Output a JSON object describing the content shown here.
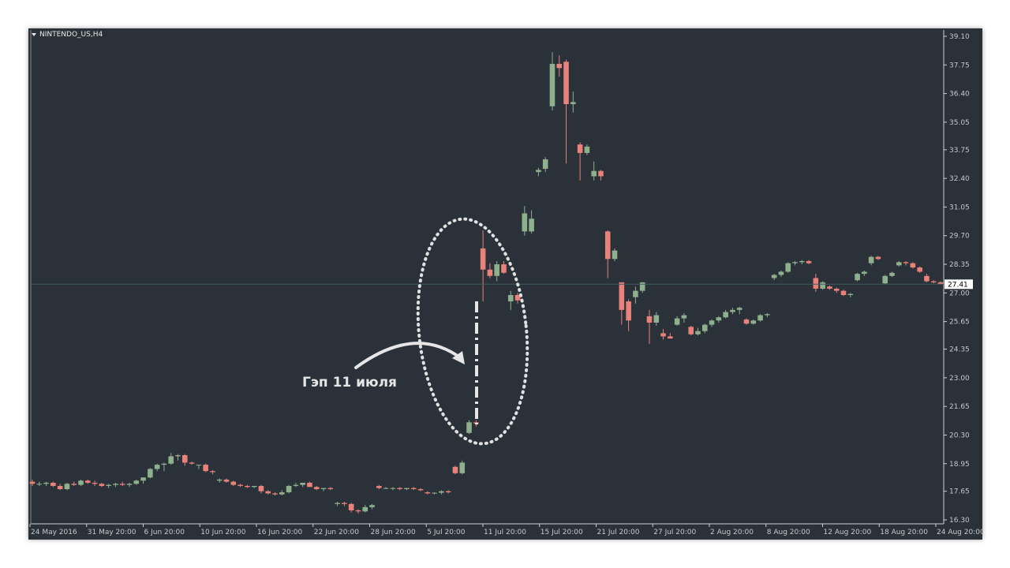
{
  "chart_data": {
    "type": "candlestick",
    "symbol": "NINTENDO_US,H4",
    "ylim": [
      16.3,
      39.1
    ],
    "y_ticks": [
      "39.10",
      "37.75",
      "36.40",
      "35.05",
      "33.75",
      "32.40",
      "31.05",
      "29.70",
      "28.35",
      "27.00",
      "25.65",
      "24.35",
      "23.00",
      "21.65",
      "20.30",
      "18.95",
      "17.65",
      "16.30"
    ],
    "x_ticks": [
      "24 May 2016",
      "31 May 20:00",
      "6 Jun 20:00",
      "10 Jun 20:00",
      "16 Jun 20:00",
      "22 Jun 20:00",
      "28 Jun 20:00",
      "5 Jul 20:00",
      "11 Jul 20:00",
      "15 Jul 20:00",
      "21 Jul 20:00",
      "27 Jul 20:00",
      "2 Aug 20:00",
      "8 Aug 20:00",
      "12 Aug 20:00",
      "18 Aug 20:00",
      "24 Aug 20:00"
    ],
    "current_price": "27.41",
    "colors": {
      "background": "#2a3139",
      "up": "#8fb08c",
      "down": "#e8827a",
      "text": "#e8e8e8",
      "axis": "#c8c8c8",
      "price_line": "#3e5a62"
    },
    "candles": [
      [
        18.1,
        18.2,
        17.9,
        18.0
      ],
      [
        18.0,
        18.1,
        17.9,
        18.0
      ],
      [
        18.0,
        18.1,
        17.9,
        18.05
      ],
      [
        18.05,
        18.1,
        17.85,
        17.9
      ],
      [
        17.9,
        18.0,
        17.7,
        17.75
      ],
      [
        17.75,
        18.05,
        17.7,
        18.0
      ],
      [
        18.0,
        18.1,
        17.9,
        17.95
      ],
      [
        17.95,
        18.2,
        17.9,
        18.15
      ],
      [
        18.15,
        18.2,
        18.0,
        18.05
      ],
      [
        18.05,
        18.15,
        17.9,
        18.0
      ],
      [
        18.0,
        18.05,
        17.85,
        17.9
      ],
      [
        17.9,
        18.0,
        17.8,
        17.95
      ],
      [
        17.95,
        18.05,
        17.85,
        18.0
      ],
      [
        18.0,
        18.1,
        17.9,
        17.95
      ],
      [
        17.95,
        18.05,
        17.85,
        18.0
      ],
      [
        18.0,
        18.2,
        17.95,
        18.15
      ],
      [
        18.15,
        18.3,
        18.0,
        18.3
      ],
      [
        18.3,
        18.75,
        18.25,
        18.7
      ],
      [
        18.7,
        18.95,
        18.6,
        18.9
      ],
      [
        18.9,
        19.0,
        18.6,
        18.95
      ],
      [
        18.95,
        19.45,
        18.9,
        19.3
      ],
      [
        19.3,
        19.4,
        19.1,
        19.35
      ],
      [
        19.35,
        19.4,
        18.85,
        19.0
      ],
      [
        19.0,
        19.05,
        18.9,
        18.95
      ],
      [
        18.9,
        18.9,
        18.7,
        18.9
      ],
      [
        18.9,
        18.95,
        18.55,
        18.6
      ],
      [
        18.6,
        18.65,
        18.45,
        18.55
      ],
      [
        18.15,
        18.25,
        18.05,
        18.2
      ],
      [
        18.2,
        18.25,
        18.05,
        18.1
      ],
      [
        18.1,
        18.15,
        17.9,
        17.95
      ],
      [
        17.95,
        18.0,
        17.85,
        17.9
      ],
      [
        17.9,
        17.95,
        17.8,
        17.85
      ],
      [
        17.85,
        17.9,
        17.8,
        17.9
      ],
      [
        17.9,
        17.95,
        17.55,
        17.65
      ],
      [
        17.65,
        17.7,
        17.5,
        17.55
      ],
      [
        17.55,
        17.6,
        17.45,
        17.5
      ],
      [
        17.5,
        17.7,
        17.45,
        17.6
      ],
      [
        17.6,
        17.95,
        17.55,
        17.9
      ],
      [
        17.9,
        18.05,
        17.85,
        17.95
      ],
      [
        17.95,
        18.05,
        17.85,
        18.05
      ],
      [
        18.05,
        18.1,
        17.9,
        17.85
      ],
      [
        17.85,
        17.9,
        17.7,
        17.75
      ],
      [
        17.75,
        17.8,
        17.65,
        17.8
      ],
      [
        17.8,
        17.85,
        17.7,
        17.75
      ],
      [
        17.05,
        17.15,
        16.95,
        17.1
      ],
      [
        17.1,
        17.15,
        16.95,
        17.05
      ],
      [
        17.05,
        17.1,
        16.65,
        16.75
      ],
      [
        16.75,
        16.8,
        16.6,
        16.7
      ],
      [
        16.7,
        17.0,
        16.65,
        16.9
      ],
      [
        16.9,
        17.05,
        16.8,
        17.0
      ],
      [
        17.9,
        17.95,
        17.75,
        17.8
      ],
      [
        17.8,
        17.85,
        17.75,
        17.8
      ],
      [
        17.8,
        17.85,
        17.7,
        17.8
      ],
      [
        17.8,
        17.85,
        17.7,
        17.75
      ],
      [
        17.75,
        17.8,
        17.7,
        17.8
      ],
      [
        17.8,
        17.85,
        17.7,
        17.75
      ],
      [
        17.75,
        17.8,
        17.65,
        17.7
      ],
      [
        17.6,
        17.65,
        17.5,
        17.55
      ],
      [
        17.55,
        17.6,
        17.5,
        17.58
      ],
      [
        17.58,
        17.7,
        17.5,
        17.65
      ],
      [
        17.65,
        17.7,
        17.55,
        17.6
      ],
      [
        18.8,
        18.85,
        18.45,
        18.5
      ],
      [
        18.5,
        19.1,
        18.45,
        19.0
      ],
      [
        20.4,
        21.0,
        20.35,
        20.9
      ],
      [
        20.9,
        21.0,
        20.7,
        20.85
      ],
      [
        29.1,
        29.95,
        26.6,
        28.1
      ],
      [
        28.1,
        28.4,
        27.7,
        27.8
      ],
      [
        27.8,
        28.5,
        27.55,
        28.35
      ],
      [
        28.35,
        28.5,
        27.9,
        27.95
      ],
      [
        26.6,
        27.1,
        26.2,
        26.9
      ],
      [
        26.9,
        27.0,
        26.5,
        26.65
      ],
      [
        29.9,
        31.1,
        29.7,
        30.75
      ],
      [
        29.9,
        30.9,
        29.8,
        30.5
      ],
      [
        32.7,
        32.9,
        32.5,
        32.8
      ],
      [
        32.85,
        33.4,
        32.7,
        33.3
      ],
      [
        35.8,
        38.35,
        35.6,
        37.8
      ],
      [
        37.8,
        38.2,
        37.2,
        37.6
      ],
      [
        37.9,
        38.0,
        33.1,
        35.9
      ],
      [
        35.9,
        36.5,
        35.5,
        36.0
      ],
      [
        34.0,
        34.1,
        32.3,
        33.6
      ],
      [
        33.6,
        34.0,
        33.5,
        33.9
      ],
      [
        32.5,
        33.2,
        32.3,
        32.75
      ],
      [
        32.75,
        32.8,
        32.3,
        32.5
      ],
      [
        29.9,
        29.95,
        27.7,
        28.6
      ],
      [
        28.6,
        29.1,
        28.5,
        29.0
      ],
      [
        27.5,
        27.4,
        25.5,
        26.2
      ],
      [
        26.6,
        26.7,
        25.2,
        25.7
      ],
      [
        26.8,
        27.3,
        26.5,
        27.1
      ],
      [
        27.1,
        27.5,
        27.0,
        27.5
      ],
      [
        25.9,
        26.2,
        24.6,
        25.6
      ],
      [
        25.6,
        26.1,
        25.45,
        25.95
      ],
      [
        25.1,
        25.3,
        24.8,
        24.95
      ],
      [
        24.95,
        25.1,
        24.85,
        24.85
      ],
      [
        25.5,
        25.9,
        25.45,
        25.8
      ],
      [
        25.8,
        26.05,
        25.6,
        25.95
      ],
      [
        25.4,
        25.45,
        25.0,
        25.05
      ],
      [
        25.05,
        25.35,
        25.0,
        25.2
      ],
      [
        25.2,
        25.55,
        25.1,
        25.5
      ],
      [
        25.5,
        25.75,
        25.4,
        25.7
      ],
      [
        25.7,
        25.9,
        25.6,
        25.85
      ],
      [
        25.85,
        26.2,
        25.8,
        26.1
      ],
      [
        26.1,
        26.3,
        26.0,
        26.2
      ],
      [
        26.2,
        26.35,
        26.0,
        26.3
      ],
      [
        25.75,
        25.8,
        25.5,
        25.55
      ],
      [
        25.55,
        25.75,
        25.5,
        25.7
      ],
      [
        25.7,
        26.0,
        25.65,
        25.95
      ],
      [
        25.95,
        26.05,
        25.85,
        26.0
      ],
      [
        27.7,
        27.9,
        27.6,
        27.85
      ],
      [
        27.85,
        28.05,
        27.75,
        28.0
      ],
      [
        28.0,
        28.45,
        27.95,
        28.4
      ],
      [
        28.4,
        28.5,
        28.3,
        28.45
      ],
      [
        28.45,
        28.55,
        28.35,
        28.5
      ],
      [
        28.5,
        28.55,
        28.35,
        28.4
      ],
      [
        27.7,
        27.9,
        27.05,
        27.2
      ],
      [
        27.2,
        27.55,
        27.15,
        27.5
      ],
      [
        27.3,
        27.35,
        27.15,
        27.2
      ],
      [
        27.2,
        27.25,
        27.0,
        27.1
      ],
      [
        27.1,
        27.15,
        26.85,
        26.9
      ],
      [
        26.9,
        27.0,
        26.8,
        26.95
      ],
      [
        27.6,
        27.95,
        27.55,
        27.9
      ],
      [
        27.9,
        28.05,
        27.8,
        28.0
      ],
      [
        28.4,
        28.75,
        28.3,
        28.7
      ],
      [
        28.7,
        28.75,
        28.55,
        28.6
      ],
      [
        27.45,
        27.85,
        27.4,
        27.8
      ],
      [
        27.8,
        28.0,
        27.75,
        27.95
      ],
      [
        28.3,
        28.5,
        28.25,
        28.45
      ],
      [
        28.45,
        28.5,
        28.3,
        28.4
      ],
      [
        28.4,
        28.45,
        28.15,
        28.2
      ],
      [
        28.2,
        28.25,
        27.95,
        28.0
      ],
      [
        27.8,
        27.9,
        27.5,
        27.55
      ],
      [
        27.55,
        27.6,
        27.45,
        27.5
      ],
      [
        27.5,
        27.55,
        27.4,
        27.41
      ]
    ],
    "annotation": "Гэп 11 июля"
  }
}
